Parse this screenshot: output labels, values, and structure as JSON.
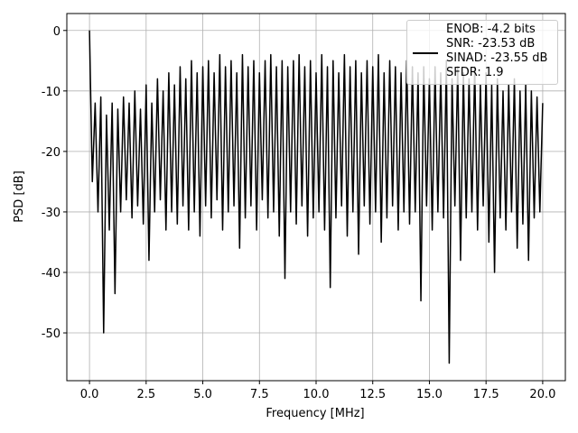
{
  "chart_data": {
    "type": "line",
    "xlabel": "Frequency [MHz]",
    "ylabel": "PSD [dB]",
    "xlim": [
      -1,
      21
    ],
    "ylim": [
      -57.9,
      2.8
    ],
    "xticks": [
      {
        "value": 0,
        "label": "0.0"
      },
      2.5,
      {
        "value": 5,
        "label": "5.0"
      },
      7.5,
      {
        "value": 10,
        "label": "10.0"
      },
      12.5,
      {
        "value": 15,
        "label": "15.0"
      },
      17.5,
      {
        "value": 20,
        "label": "20.0"
      }
    ],
    "yticks": [
      0,
      -10,
      -20,
      -30,
      -40,
      -50
    ],
    "grid": true,
    "legend": "upper right",
    "x": [
      0,
      0.125,
      0.25,
      0.375,
      0.5,
      0.625,
      0.75,
      0.875,
      1,
      1.125,
      1.25,
      1.375,
      1.5,
      1.625,
      1.75,
      1.875,
      2,
      2.125,
      2.25,
      2.375,
      2.5,
      2.625,
      2.75,
      2.875,
      3,
      3.125,
      3.25,
      3.375,
      3.5,
      3.625,
      3.75,
      3.875,
      4,
      4.125,
      4.25,
      4.375,
      4.5,
      4.625,
      4.75,
      4.875,
      5,
      5.125,
      5.25,
      5.375,
      5.5,
      5.625,
      5.75,
      5.875,
      6,
      6.125,
      6.25,
      6.375,
      6.5,
      6.625,
      6.75,
      6.875,
      7,
      7.125,
      7.25,
      7.375,
      7.5,
      7.625,
      7.75,
      7.875,
      8,
      8.125,
      8.25,
      8.375,
      8.5,
      8.625,
      8.75,
      8.875,
      9,
      9.125,
      9.25,
      9.375,
      9.5,
      9.625,
      9.75,
      9.875,
      10,
      10.125,
      10.25,
      10.375,
      10.5,
      10.625,
      10.75,
      10.875,
      11,
      11.125,
      11.25,
      11.375,
      11.5,
      11.625,
      11.75,
      11.875,
      12,
      12.125,
      12.25,
      12.375,
      12.5,
      12.625,
      12.75,
      12.875,
      13,
      13.125,
      13.25,
      13.375,
      13.5,
      13.625,
      13.75,
      13.875,
      14,
      14.125,
      14.25,
      14.375,
      14.5,
      14.625,
      14.75,
      14.875,
      15,
      15.125,
      15.25,
      15.375,
      15.5,
      15.625,
      15.75,
      15.875,
      16,
      16.125,
      16.25,
      16.375,
      16.5,
      16.625,
      16.75,
      16.875,
      17,
      17.125,
      17.25,
      17.375,
      17.5,
      17.625,
      17.75,
      17.875,
      18,
      18.125,
      18.25,
      18.375,
      18.5,
      18.625,
      18.75,
      18.875,
      19,
      19.125,
      19.25,
      19.375,
      19.5,
      19.625,
      19.75,
      19.875,
      20
    ],
    "series": [
      {
        "name": "ENOB: -4.2 bits\nSNR: -23.53 dB\nSINAD: -23.55 dB\nSFDR: 1.9",
        "color": "#000000",
        "values": [
          0,
          -25,
          -12,
          -30,
          -11,
          -50,
          -14,
          -33,
          -12,
          -43.5,
          -13,
          -30,
          -11,
          -28,
          -12,
          -31,
          -10,
          -29,
          -13,
          -32,
          -9,
          -38,
          -12,
          -30,
          -8,
          -28,
          -10,
          -33,
          -7,
          -30,
          -9,
          -32,
          -6,
          -29,
          -8,
          -33,
          -5,
          -30,
          -7,
          -34,
          -6,
          -29,
          -5,
          -31,
          -7,
          -28,
          -4,
          -33,
          -6,
          -30,
          -5,
          -29,
          -7,
          -36,
          -4,
          -31,
          -6,
          -29,
          -5,
          -33,
          -7,
          -28,
          -5,
          -31,
          -4,
          -30,
          -6,
          -34,
          -5,
          -41,
          -6,
          -30,
          -5,
          -32,
          -4,
          -29,
          -6,
          -34,
          -5,
          -31,
          -7,
          -30,
          -4,
          -33,
          -6,
          -42.5,
          -5,
          -31,
          -7,
          -29,
          -4,
          -34,
          -6,
          -30,
          -5,
          -37,
          -7,
          -29,
          -5,
          -32,
          -6,
          -30,
          -4,
          -35,
          -7,
          -31,
          -5,
          -29,
          -6,
          -33,
          -7,
          -30,
          -5,
          -32,
          -6,
          -30,
          -7,
          -44.7,
          -6,
          -29,
          -8,
          -33,
          -6,
          -30,
          -7,
          -31,
          -5,
          -55,
          -8,
          -29,
          -6,
          -38,
          -7,
          -31,
          -8,
          -30,
          -6,
          -33,
          -9,
          -29,
          -7,
          -35,
          -9,
          -40,
          -8,
          -31,
          -10,
          -33,
          -9,
          -30,
          -8,
          -36,
          -10,
          -32,
          -9,
          -38,
          -10,
          -31,
          -11,
          -30,
          -12
        ]
      }
    ]
  }
}
